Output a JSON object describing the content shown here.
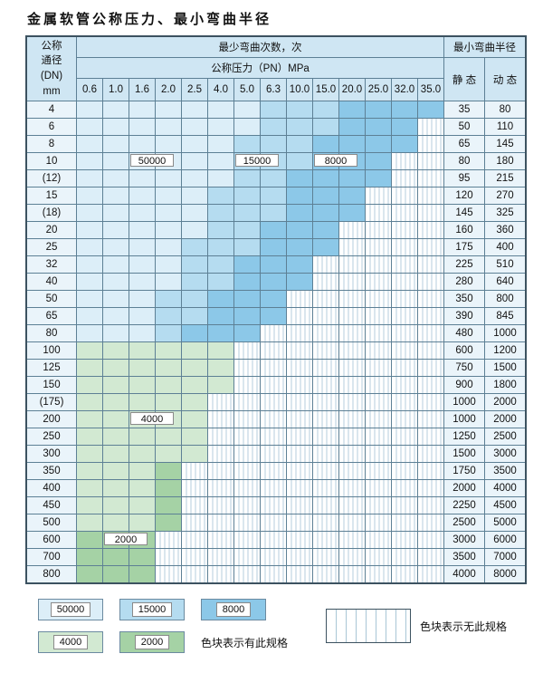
{
  "title": "金属软管公称压力、最小弯曲半径",
  "colors": {
    "50000": "#dceef8",
    "15000": "#b5dcf0",
    "8000": "#8cc8e8",
    "4000": "#d2e9d2",
    "2000": "#a5d2a5"
  },
  "table": {
    "header": {
      "dn_lines": [
        "公称",
        "通径",
        "(DN)",
        "mm"
      ],
      "bend_cycles_label": "最少弯曲次数，次",
      "pressure_label": "公称压力（PN）MPa",
      "pressure_columns": [
        "0.6",
        "1.0",
        "1.6",
        "2.0",
        "2.5",
        "4.0",
        "5.0",
        "6.3",
        "10.0",
        "15.0",
        "20.0",
        "25.0",
        "32.0",
        "35.0"
      ],
      "radius_label": "最小弯曲半径",
      "static_label": "静 态",
      "dynamic_label": "动 态"
    },
    "rows": [
      {
        "dn": "4",
        "static": "35",
        "dynamic": "80",
        "bands": [
          [
            "50000",
            6
          ],
          [
            "15000",
            9
          ],
          [
            "8000",
            13
          ]
        ]
      },
      {
        "dn": "6",
        "static": "50",
        "dynamic": "110",
        "bands": [
          [
            "50000",
            6
          ],
          [
            "15000",
            9
          ],
          [
            "8000",
            12
          ]
        ]
      },
      {
        "dn": "8",
        "static": "65",
        "dynamic": "145",
        "bands": [
          [
            "50000",
            5
          ],
          [
            "15000",
            8
          ],
          [
            "8000",
            12
          ]
        ]
      },
      {
        "dn": "10",
        "static": "80",
        "dynamic": "180",
        "bands": [
          [
            "50000",
            5
          ],
          [
            "15000",
            8
          ],
          [
            "8000",
            11
          ]
        ]
      },
      {
        "dn": "(12)",
        "static": "95",
        "dynamic": "215",
        "bands": [
          [
            "50000",
            5
          ],
          [
            "15000",
            7
          ],
          [
            "8000",
            11
          ]
        ]
      },
      {
        "dn": "15",
        "static": "120",
        "dynamic": "270",
        "bands": [
          [
            "50000",
            4
          ],
          [
            "15000",
            7
          ],
          [
            "8000",
            10
          ]
        ]
      },
      {
        "dn": "(18)",
        "static": "145",
        "dynamic": "325",
        "bands": [
          [
            "50000",
            4
          ],
          [
            "15000",
            7
          ],
          [
            "8000",
            10
          ]
        ]
      },
      {
        "dn": "20",
        "static": "160",
        "dynamic": "360",
        "bands": [
          [
            "50000",
            4
          ],
          [
            "15000",
            6
          ],
          [
            "8000",
            9
          ]
        ]
      },
      {
        "dn": "25",
        "static": "175",
        "dynamic": "400",
        "bands": [
          [
            "50000",
            3
          ],
          [
            "15000",
            6
          ],
          [
            "8000",
            9
          ]
        ]
      },
      {
        "dn": "32",
        "static": "225",
        "dynamic": "510",
        "bands": [
          [
            "50000",
            3
          ],
          [
            "15000",
            5
          ],
          [
            "8000",
            8
          ]
        ]
      },
      {
        "dn": "40",
        "static": "280",
        "dynamic": "640",
        "bands": [
          [
            "50000",
            3
          ],
          [
            "15000",
            5
          ],
          [
            "8000",
            8
          ]
        ]
      },
      {
        "dn": "50",
        "static": "350",
        "dynamic": "800",
        "bands": [
          [
            "50000",
            2
          ],
          [
            "15000",
            4
          ],
          [
            "8000",
            7
          ]
        ]
      },
      {
        "dn": "65",
        "static": "390",
        "dynamic": "845",
        "bands": [
          [
            "50000",
            2
          ],
          [
            "15000",
            4
          ],
          [
            "8000",
            7
          ]
        ]
      },
      {
        "dn": "80",
        "static": "480",
        "dynamic": "1000",
        "bands": [
          [
            "50000",
            2
          ],
          [
            "15000",
            3
          ],
          [
            "8000",
            6
          ]
        ]
      },
      {
        "dn": "100",
        "static": "600",
        "dynamic": "1200",
        "bands": [
          [
            "4000",
            5
          ]
        ]
      },
      {
        "dn": "125",
        "static": "750",
        "dynamic": "1500",
        "bands": [
          [
            "4000",
            5
          ]
        ]
      },
      {
        "dn": "150",
        "static": "900",
        "dynamic": "1800",
        "bands": [
          [
            "4000",
            5
          ]
        ]
      },
      {
        "dn": "(175)",
        "static": "1000",
        "dynamic": "2000",
        "bands": [
          [
            "4000",
            4
          ]
        ]
      },
      {
        "dn": "200",
        "static": "1000",
        "dynamic": "2000",
        "bands": [
          [
            "4000",
            4
          ]
        ]
      },
      {
        "dn": "250",
        "static": "1250",
        "dynamic": "2500",
        "bands": [
          [
            "4000",
            4
          ]
        ]
      },
      {
        "dn": "300",
        "static": "1500",
        "dynamic": "3000",
        "bands": [
          [
            "4000",
            4
          ]
        ]
      },
      {
        "dn": "350",
        "static": "1750",
        "dynamic": "3500",
        "bands": [
          [
            "4000",
            2
          ],
          [
            "2000",
            3
          ]
        ]
      },
      {
        "dn": "400",
        "static": "2000",
        "dynamic": "4000",
        "bands": [
          [
            "4000",
            2
          ],
          [
            "2000",
            3
          ]
        ]
      },
      {
        "dn": "450",
        "static": "2250",
        "dynamic": "4500",
        "bands": [
          [
            "4000",
            2
          ],
          [
            "2000",
            3
          ]
        ]
      },
      {
        "dn": "500",
        "static": "2500",
        "dynamic": "5000",
        "bands": [
          [
            "4000",
            2
          ],
          [
            "2000",
            3
          ]
        ]
      },
      {
        "dn": "600",
        "static": "3000",
        "dynamic": "6000",
        "bands": [
          [
            "2000",
            2
          ]
        ]
      },
      {
        "dn": "700",
        "static": "3500",
        "dynamic": "7000",
        "bands": [
          [
            "2000",
            2
          ]
        ]
      },
      {
        "dn": "800",
        "static": "4000",
        "dynamic": "8000",
        "bands": [
          [
            "2000",
            2
          ]
        ]
      }
    ],
    "overlay_labels": [
      {
        "text": "50000",
        "row": "10",
        "col": 2
      },
      {
        "text": "15000",
        "row": "10",
        "col": 6
      },
      {
        "text": "8000",
        "row": "10",
        "col": 9
      },
      {
        "text": "4000",
        "row": "200",
        "col": 2
      },
      {
        "text": "2000",
        "row": "600",
        "col": 1
      }
    ]
  },
  "legend": {
    "items": [
      "50000",
      "15000",
      "8000",
      "4000",
      "2000"
    ],
    "has_spec_label": "色块表示有此规格",
    "no_spec_label": "色块表示无此规格"
  }
}
